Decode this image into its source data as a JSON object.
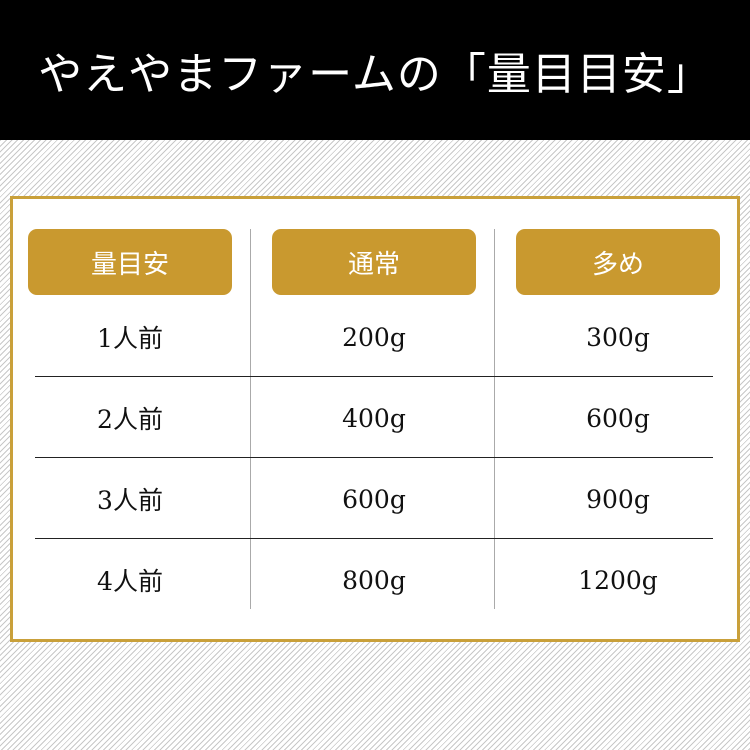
{
  "title": "やえやまファームの「量目目安」",
  "headers": [
    "量目安",
    "通常",
    "多め"
  ],
  "rows": [
    [
      "1人前",
      "200g",
      "300g"
    ],
    [
      "2人前",
      "400g",
      "600g"
    ],
    [
      "3人前",
      "600g",
      "900g"
    ],
    [
      "4人前",
      "800g",
      "1200g"
    ]
  ],
  "colors": {
    "accent": "#c9992f",
    "border": "#c9a03a",
    "header_bg": "#000000"
  }
}
